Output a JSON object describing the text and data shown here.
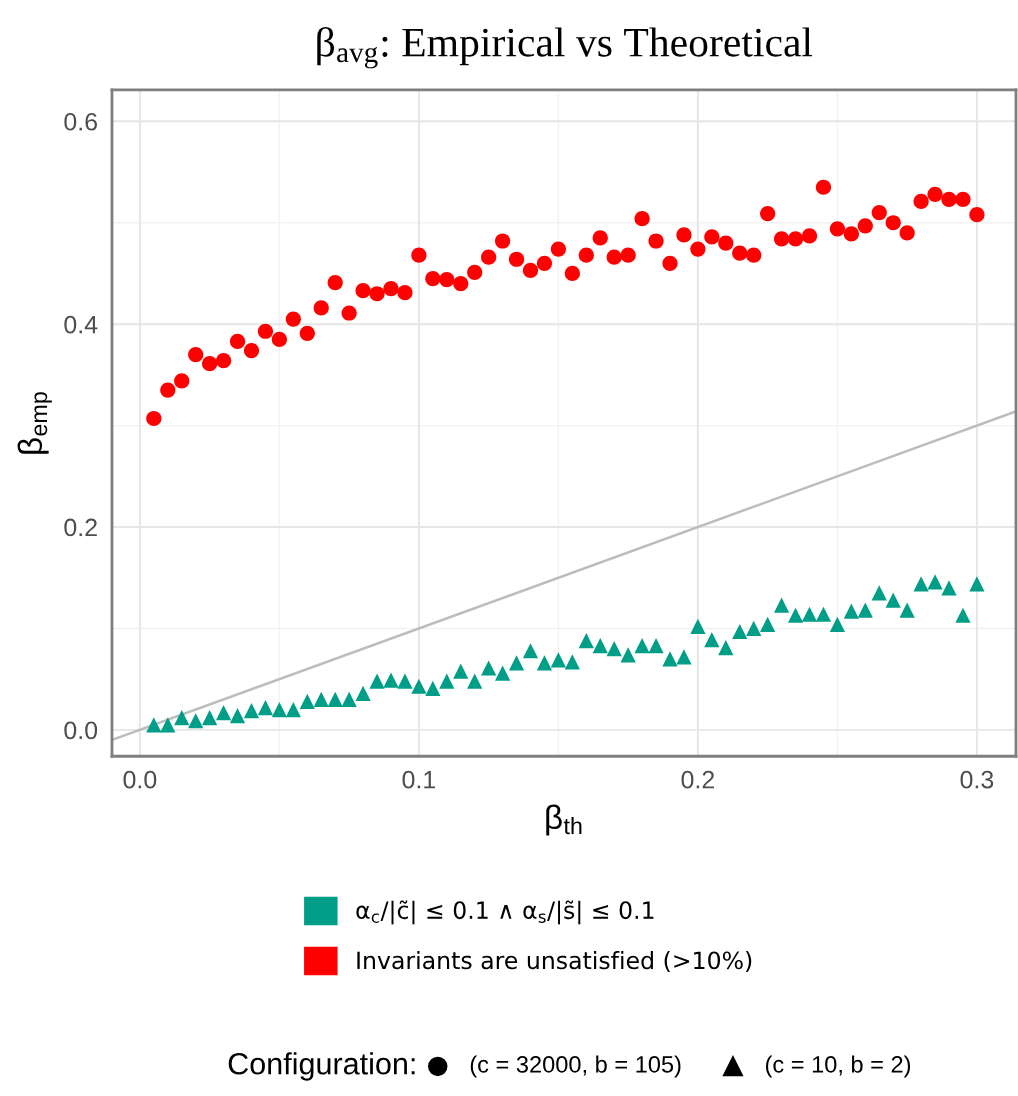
{
  "chart_data": {
    "type": "scatter",
    "title": "β$_{avg}$: Empirical vs Theoretical",
    "xlabel": "β$_{th}$",
    "ylabel": "β$_{emp}$",
    "x": [
      0.005,
      0.01,
      0.015,
      0.02,
      0.025,
      0.03,
      0.035,
      0.04,
      0.045,
      0.05,
      0.055,
      0.06,
      0.065,
      0.07,
      0.075,
      0.08,
      0.085,
      0.09,
      0.095,
      0.1,
      0.105,
      0.11,
      0.115,
      0.12,
      0.125,
      0.13,
      0.135,
      0.14,
      0.145,
      0.15,
      0.155,
      0.16,
      0.165,
      0.17,
      0.175,
      0.18,
      0.185,
      0.19,
      0.195,
      0.2,
      0.205,
      0.21,
      0.215,
      0.22,
      0.225,
      0.23,
      0.235,
      0.24,
      0.245,
      0.25,
      0.255,
      0.26,
      0.265,
      0.27,
      0.275,
      0.28,
      0.285,
      0.29,
      0.295,
      0.3
    ],
    "series": [
      {
        "name": "Invariants are unsatisfied (>10%)",
        "color": "#ff0000",
        "marker": "circle",
        "values": [
          0.307,
          0.335,
          0.344,
          0.37,
          0.361,
          0.364,
          0.383,
          0.374,
          0.393,
          0.385,
          0.405,
          0.391,
          0.416,
          0.441,
          0.411,
          0.433,
          0.43,
          0.435,
          0.431,
          0.468,
          0.445,
          0.444,
          0.44,
          0.451,
          0.466,
          0.482,
          0.464,
          0.453,
          0.46,
          0.474,
          0.45,
          0.468,
          0.485,
          0.466,
          0.468,
          0.504,
          0.482,
          0.46,
          0.488,
          0.474,
          0.486,
          0.48,
          0.47,
          0.468,
          0.509,
          0.484,
          0.484,
          0.487,
          0.535,
          0.494,
          0.489,
          0.497,
          0.51,
          0.5,
          0.49,
          0.521,
          0.528,
          0.523,
          0.523,
          0.508
        ]
      },
      {
        "name": "α$_{c}$/|c̃| ≤ 0.1 ∧ α$_{s}$/|s̃| ≤ 0.1",
        "color": "#009e87",
        "marker": "triangle",
        "values": [
          0.005,
          0.005,
          0.012,
          0.009,
          0.012,
          0.017,
          0.014,
          0.019,
          0.022,
          0.02,
          0.02,
          0.028,
          0.03,
          0.03,
          0.03,
          0.036,
          0.048,
          0.049,
          0.048,
          0.043,
          0.041,
          0.048,
          0.058,
          0.048,
          0.061,
          0.056,
          0.066,
          0.078,
          0.066,
          0.069,
          0.067,
          0.088,
          0.083,
          0.08,
          0.074,
          0.083,
          0.083,
          0.07,
          0.072,
          0.102,
          0.089,
          0.081,
          0.097,
          0.1,
          0.104,
          0.123,
          0.113,
          0.114,
          0.114,
          0.104,
          0.117,
          0.118,
          0.135,
          0.128,
          0.118,
          0.144,
          0.146,
          0.14,
          0.113,
          0.144
        ]
      },
      {
        "type": "line",
        "color": "#bdbdbd",
        "marker": "none",
        "x": [
          -0.01,
          0.314
        ],
        "values": [
          -0.01,
          0.314
        ]
      }
    ],
    "xlim": [
      -0.01,
      0.314
    ],
    "ylim": [
      -0.026,
      0.631
    ],
    "xticks": [
      {
        "value": 0,
        "label": "0.0"
      },
      {
        "value": 0.1,
        "label": "0.1"
      },
      {
        "value": 0.2,
        "label": "0.2"
      },
      {
        "value": 0.3,
        "label": "0.3"
      }
    ],
    "yticks": [
      {
        "value": 0,
        "label": "0.0"
      },
      {
        "value": 0.2,
        "label": "0.2"
      },
      {
        "value": 0.4,
        "label": "0.4"
      },
      {
        "value": 0.6,
        "label": "0.6"
      }
    ],
    "grid": true,
    "legend": "bottom",
    "legend_title": "Configuration:",
    "annotations": [
      "(c = 32000, b = 105)",
      "(c = 10, b = 2)"
    ]
  }
}
